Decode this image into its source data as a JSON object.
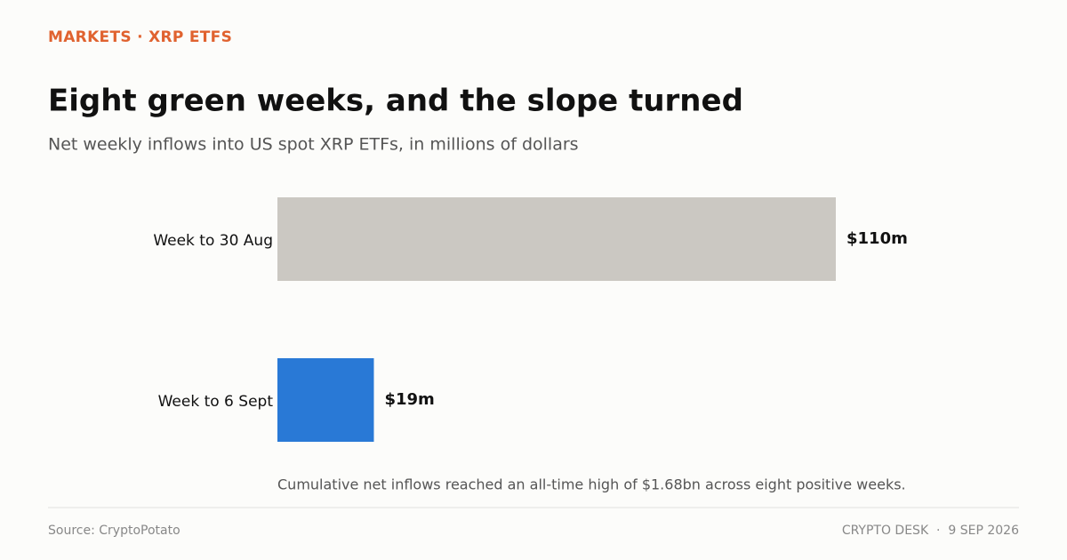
{
  "chart_data": {
    "type": "hbar",
    "kicker": "MARKETS · XRP ETFS",
    "title": "Eight green weeks, and the slope turned",
    "subtitle": "Net weekly inflows into US spot XRP ETFs, in millions of dollars",
    "categories": [
      "Week to 30 Aug",
      "Week to 6 Sept"
    ],
    "values": [
      110,
      19
    ],
    "value_labels": [
      "$110m",
      "$19m"
    ],
    "colors": [
      "#cbc8c2",
      "#2979d6"
    ],
    "annotation": "Cumulative net inflows reached an all-time high of $1.68bn across eight positive weeks.",
    "source": "Source: CryptoPotato",
    "credit": "CRYPTO DESK  ·  9 SEP 2026"
  }
}
